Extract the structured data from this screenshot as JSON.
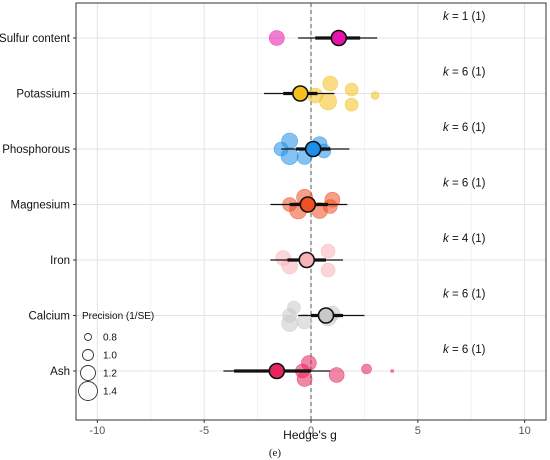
{
  "chart_data": {
    "type": "scatter",
    "xlabel": "Hedge's g",
    "xlim": [
      -11,
      11
    ],
    "xticks": [
      -10,
      -5,
      0,
      5,
      10
    ],
    "reference_line_x": 0,
    "grid": true,
    "caption": "(e)",
    "categories": [
      "Sulfur content",
      "Potassium",
      "Phosphorous",
      "Magnesium",
      "Iron",
      "Calcium",
      "Ash"
    ],
    "k_labels": [
      {
        "k": "k",
        "text": " = 1 (1)"
      },
      {
        "k": "k",
        "text": " = 6 (1)"
      },
      {
        "k": "k",
        "text": " = 6 (1)"
      },
      {
        "k": "k",
        "text": " = 6 (1)"
      },
      {
        "k": "k",
        "text": " = 4 (1)"
      },
      {
        "k": "k",
        "text": " = 6 (1)"
      },
      {
        "k": "k",
        "text": " = 6 (1)"
      }
    ],
    "legend": {
      "title": "Precision (1/SE)",
      "placement": "bottom-left",
      "labels": [
        "0.8",
        "1.0",
        "1.2",
        "1.4"
      ],
      "values": [
        0.8,
        1.0,
        1.2,
        1.4
      ]
    },
    "series": [
      {
        "color": "#e614a8",
        "estimate": 1.3,
        "ci95": [
          -0.6,
          3.1
        ],
        "ci_thick": [
          0.2,
          2.3
        ],
        "points": [
          {
            "x": -1.6,
            "y_offset": 0.0,
            "precision": 1.2
          }
        ]
      },
      {
        "color": "#f4c01e",
        "estimate": -0.5,
        "ci95": [
          -2.2,
          1.1
        ],
        "ci_thick": [
          -1.3,
          0.3
        ],
        "points": [
          {
            "x": 0.9,
            "y_offset": 0.25,
            "precision": 1.2
          },
          {
            "x": 1.9,
            "y_offset": 0.1,
            "precision": 1.1
          },
          {
            "x": 3.0,
            "y_offset": -0.05,
            "precision": 0.85
          },
          {
            "x": 0.2,
            "y_offset": -0.05,
            "precision": 1.2
          },
          {
            "x": 0.8,
            "y_offset": -0.2,
            "precision": 1.3
          },
          {
            "x": 1.9,
            "y_offset": -0.28,
            "precision": 1.1
          }
        ]
      },
      {
        "color": "#1e8fe8",
        "estimate": 0.1,
        "ci95": [
          -1.4,
          1.8
        ],
        "ci_thick": [
          -0.7,
          0.9
        ],
        "points": [
          {
            "x": -1.0,
            "y_offset": 0.2,
            "precision": 1.25
          },
          {
            "x": 0.4,
            "y_offset": 0.12,
            "precision": 1.2
          },
          {
            "x": -1.4,
            "y_offset": 0.0,
            "precision": 1.15
          },
          {
            "x": 0.6,
            "y_offset": -0.05,
            "precision": 1.15
          },
          {
            "x": -1.0,
            "y_offset": -0.18,
            "precision": 1.3
          },
          {
            "x": -0.3,
            "y_offset": -0.2,
            "precision": 1.2
          }
        ]
      },
      {
        "color": "#f04e23",
        "estimate": -0.15,
        "ci95": [
          -1.9,
          1.7
        ],
        "ci_thick": [
          -1.0,
          0.8
        ],
        "points": [
          {
            "x": -0.3,
            "y_offset": 0.18,
            "precision": 1.25
          },
          {
            "x": 1.0,
            "y_offset": 0.12,
            "precision": 1.2
          },
          {
            "x": -1.0,
            "y_offset": 0.0,
            "precision": 1.15
          },
          {
            "x": 0.9,
            "y_offset": -0.05,
            "precision": 1.15
          },
          {
            "x": -0.6,
            "y_offset": -0.15,
            "precision": 1.3
          },
          {
            "x": 0.4,
            "y_offset": -0.15,
            "precision": 1.25
          }
        ]
      },
      {
        "color": "#f7b3b8",
        "estimate": -0.2,
        "ci95": [
          -1.9,
          1.5
        ],
        "ci_thick": [
          -1.1,
          0.7
        ],
        "points": [
          {
            "x": 0.8,
            "y_offset": 0.22,
            "precision": 1.15
          },
          {
            "x": -1.3,
            "y_offset": 0.05,
            "precision": 1.2
          },
          {
            "x": -1.0,
            "y_offset": -0.15,
            "precision": 1.25
          },
          {
            "x": 0.8,
            "y_offset": -0.25,
            "precision": 1.15
          }
        ]
      },
      {
        "color": "#c8c8c8",
        "estimate": 0.7,
        "ci95": [
          -0.6,
          2.5
        ],
        "ci_thick": [
          0.0,
          1.5
        ],
        "points": [
          {
            "x": -0.8,
            "y_offset": 0.2,
            "precision": 1.1
          },
          {
            "x": 1.0,
            "y_offset": 0.05,
            "precision": 1.2
          },
          {
            "x": -1.0,
            "y_offset": 0.0,
            "precision": 1.15
          },
          {
            "x": -0.3,
            "y_offset": -0.15,
            "precision": 1.2
          },
          {
            "x": -1.0,
            "y_offset": -0.2,
            "precision": 1.25
          },
          {
            "x": 0.8,
            "y_offset": -0.05,
            "precision": 1.3
          }
        ]
      },
      {
        "color": "#e6245e",
        "estimate": -1.6,
        "ci95": [
          -4.1,
          0.9
        ],
        "ci_thick": [
          -3.6,
          0.0
        ],
        "points": [
          {
            "x": -0.1,
            "y_offset": 0.2,
            "precision": 1.2
          },
          {
            "x": 2.6,
            "y_offset": 0.05,
            "precision": 0.95
          },
          {
            "x": 3.8,
            "y_offset": 0.0,
            "precision": 0.6
          },
          {
            "x": -0.4,
            "y_offset": 0.0,
            "precision": 1.15
          },
          {
            "x": 1.2,
            "y_offset": -0.1,
            "precision": 1.2
          },
          {
            "x": -0.3,
            "y_offset": -0.2,
            "precision": 1.2
          }
        ]
      }
    ]
  }
}
